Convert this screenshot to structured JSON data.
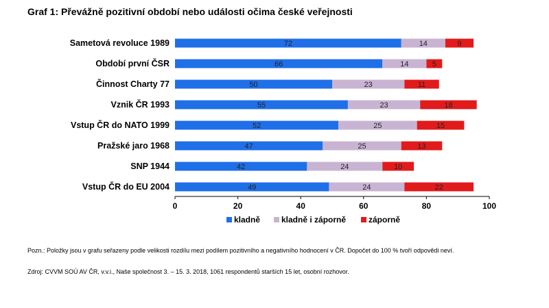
{
  "title": "Graf 1: Převážně pozitivní období nebo události očima české veřejnosti",
  "note": "Pozn.: Položky jsou v grafu seřazeny podle velikosti rozdílu mezi podílem pozitivního a negativního hodnocení v ČR. Dopočet do 100 % tvoří odpovědi neví.",
  "source": "Zdroj: CVVM SOÚ AV ČR, v.v.i., Naše společnost 3. – 15. 3. 2018, 1061 respondentů starších 15 let, osobní rozhovor.",
  "chart_data": {
    "type": "bar",
    "orientation": "horizontal",
    "stacked": true,
    "title": "Graf 1: Převážně pozitivní období nebo události očima české veřejnosti",
    "categories": [
      "Sametová revoluce 1989",
      "Období první ČSR",
      "Činnost Charty 77",
      "Vznik ČR 1993",
      "Vstup ČR do NATO 1999",
      "Pražské jaro 1968",
      "SNP  1944",
      "Vstup ČR do EU 2004"
    ],
    "series": [
      {
        "name": "kladně",
        "color": "#1f6fe8",
        "values": [
          72,
          66,
          50,
          55,
          52,
          47,
          42,
          49
        ]
      },
      {
        "name": "kladně i záporně",
        "color": "#c8b4d2",
        "values": [
          14,
          14,
          23,
          23,
          25,
          25,
          24,
          24
        ]
      },
      {
        "name": "záporně",
        "color": "#e11b1b",
        "values": [
          9,
          5,
          11,
          18,
          15,
          13,
          10,
          22
        ]
      }
    ],
    "xlim": [
      0,
      100
    ],
    "xticks": [
      0,
      20,
      40,
      60,
      80,
      100
    ],
    "grid": false,
    "legend": "bottom"
  }
}
